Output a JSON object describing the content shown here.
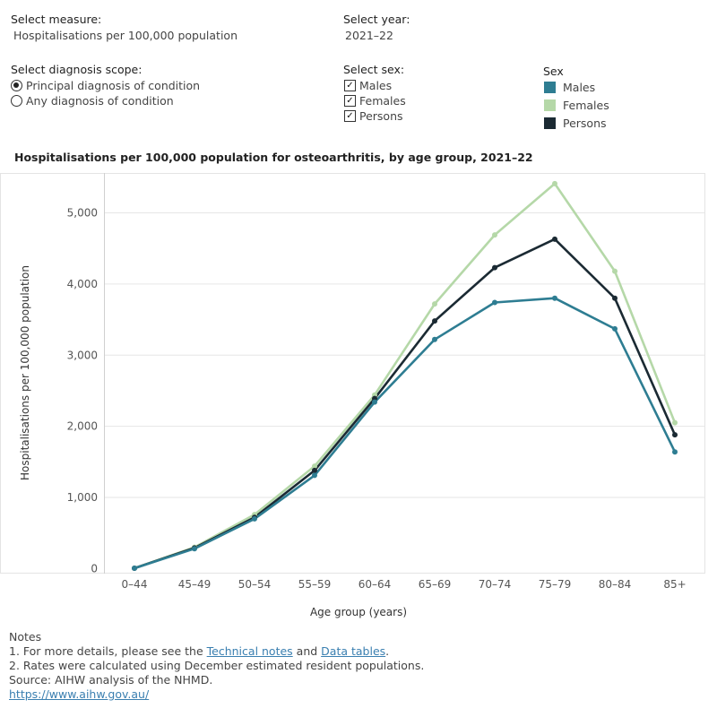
{
  "controls": {
    "measure_label": "Select measure:",
    "measure_value": "Hospitalisations per 100,000 population",
    "year_label": "Select year:",
    "year_value": "2021–22",
    "scope_label": "Select diagnosis scope:",
    "scope_options": [
      {
        "label": "Principal diagnosis of condition",
        "selected": true
      },
      {
        "label": "Any diagnosis of condition",
        "selected": false
      }
    ],
    "sex_label": "Select sex:",
    "sex_options": [
      {
        "label": "Males",
        "checked": true
      },
      {
        "label": "Females",
        "checked": true
      },
      {
        "label": "Persons",
        "checked": true
      }
    ]
  },
  "legend": {
    "title": "Sex",
    "items": [
      {
        "label": "Males",
        "color": "#2e7d92"
      },
      {
        "label": "Females",
        "color": "#b5d8a8"
      },
      {
        "label": "Persons",
        "color": "#1b2a33"
      }
    ]
  },
  "chart_data": {
    "type": "line",
    "title": "Hospitalisations per 100,000 population for osteoarthritis, by age group, 2021–22",
    "xlabel": "Age group (years)",
    "ylabel": "Hospitalisations per 100,000 population",
    "categories": [
      "0–44",
      "45–49",
      "50–54",
      "55–59",
      "60–64",
      "65–69",
      "70–74",
      "75–79",
      "80–84",
      "85+"
    ],
    "yticks": [
      "0",
      "1,000",
      "2,000",
      "3,000",
      "4,000",
      "5,000"
    ],
    "ylim": [
      -70,
      5560
    ],
    "grid": true,
    "series": [
      {
        "name": "Females",
        "color": "#b5d8a8",
        "values": [
          5,
          300,
          760,
          1440,
          2440,
          3720,
          4690,
          5410,
          4180,
          2050
        ]
      },
      {
        "name": "Persons",
        "color": "#1b2a33",
        "values": [
          5,
          290,
          720,
          1380,
          2390,
          3480,
          4230,
          4630,
          3800,
          1880
        ]
      },
      {
        "name": "Males",
        "color": "#2e7d92",
        "values": [
          5,
          280,
          700,
          1310,
          2340,
          3220,
          3740,
          3800,
          3370,
          1640
        ]
      }
    ]
  },
  "notes": {
    "heading": "Notes",
    "line1_prefix": "1. For more details, please see the ",
    "link1": "Technical notes",
    "line1_mid": " and ",
    "link2": "Data tables",
    "line1_suffix": ".",
    "line2": "2. Rates were calculated using December estimated resident populations.",
    "source": "Source: AIHW analysis of the NHMD.",
    "url": "https://www.aihw.gov.au/"
  }
}
